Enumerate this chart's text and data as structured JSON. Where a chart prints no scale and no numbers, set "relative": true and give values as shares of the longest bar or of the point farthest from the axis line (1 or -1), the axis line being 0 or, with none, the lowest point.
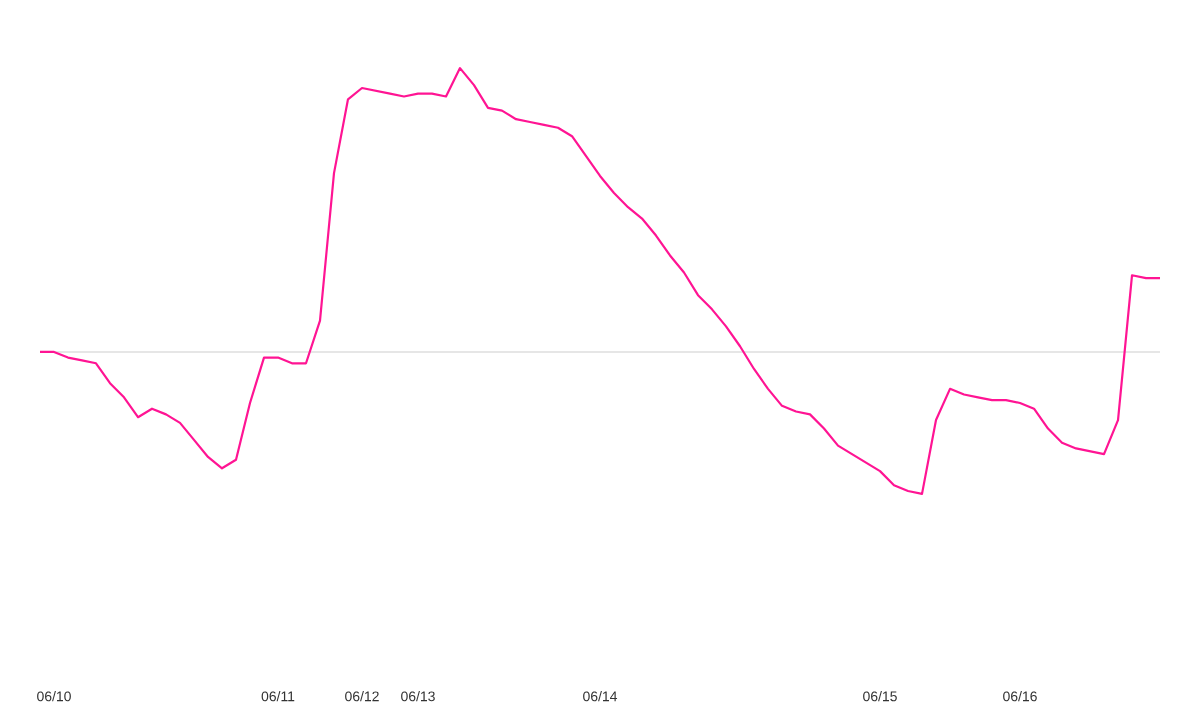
{
  "chart_data": {
    "type": "line",
    "relative": true,
    "marker": "none",
    "color": "#ff1493",
    "categories": [
      null,
      "06/10",
      null,
      null,
      null,
      null,
      null,
      null,
      null,
      null,
      null,
      null,
      null,
      null,
      null,
      null,
      null,
      "06/11",
      null,
      null,
      null,
      null,
      null,
      "06/12",
      null,
      null,
      null,
      "06/13",
      null,
      null,
      null,
      null,
      null,
      null,
      null,
      null,
      null,
      null,
      null,
      null,
      "06/14",
      null,
      null,
      null,
      null,
      null,
      null,
      null,
      null,
      null,
      null,
      null,
      null,
      null,
      null,
      null,
      null,
      null,
      null,
      null,
      "06/15",
      null,
      null,
      null,
      null,
      null,
      null,
      null,
      null,
      null,
      "06/16",
      null,
      null,
      null,
      null,
      null,
      null,
      null,
      null,
      null,
      null
    ],
    "values": [
      0,
      0,
      -0.02,
      -0.03,
      -0.04,
      -0.11,
      -0.16,
      -0.23,
      -0.2,
      -0.22,
      -0.25,
      -0.31,
      -0.37,
      -0.41,
      -0.38,
      -0.18,
      -0.02,
      -0.02,
      -0.04,
      -0.04,
      0.11,
      0.63,
      0.89,
      0.93,
      0.92,
      0.91,
      0.9,
      0.91,
      0.91,
      0.9,
      1.0,
      0.94,
      0.86,
      0.85,
      0.82,
      0.81,
      0.8,
      0.79,
      0.76,
      0.69,
      0.62,
      0.56,
      0.51,
      0.47,
      0.41,
      0.34,
      0.28,
      0.2,
      0.15,
      0.09,
      0.02,
      -0.06,
      -0.13,
      -0.19,
      -0.21,
      -0.22,
      -0.27,
      -0.33,
      -0.36,
      -0.39,
      -0.42,
      -0.47,
      -0.49,
      -0.5,
      -0.24,
      -0.13,
      -0.15,
      -0.16,
      -0.17,
      -0.17,
      -0.18,
      -0.2,
      -0.27,
      -0.32,
      -0.34,
      -0.35,
      -0.36,
      -0.24,
      0.27,
      0.26,
      0.26
    ]
  }
}
